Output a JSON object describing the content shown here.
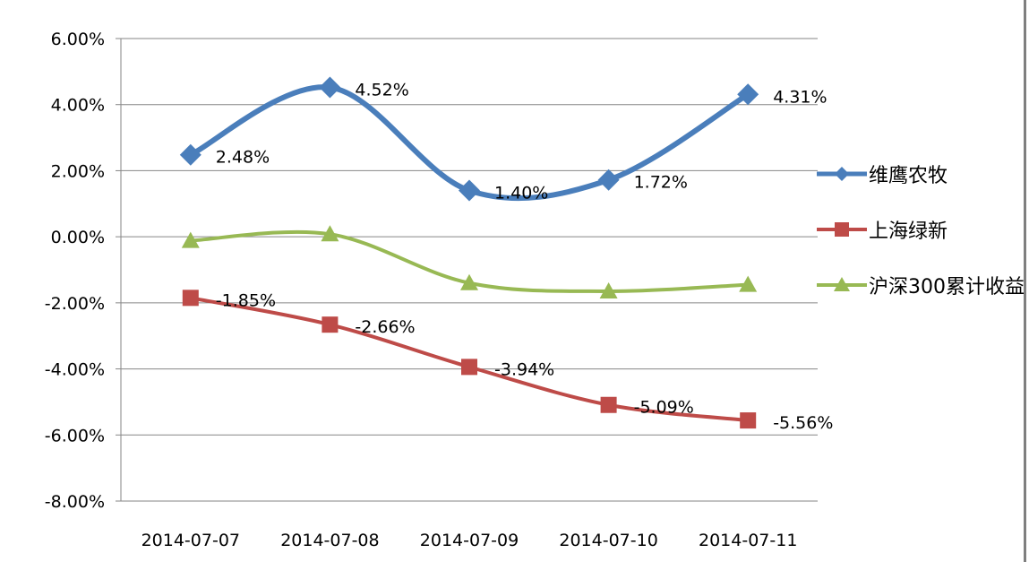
{
  "chart_data": {
    "type": "line",
    "categories": [
      "2014-07-07",
      "2014-07-08",
      "2014-07-09",
      "2014-07-10",
      "2014-07-11"
    ],
    "series": [
      {
        "name": "维鹰农牧",
        "values": [
          2.48,
          4.52,
          1.4,
          1.72,
          4.31
        ],
        "labels": [
          "2.48%",
          "4.52%",
          "1.40%",
          "1.72%",
          "4.31%"
        ],
        "color": "#4a7ebb",
        "marker": "diamond"
      },
      {
        "name": "上海绿新",
        "values": [
          -1.85,
          -2.66,
          -3.94,
          -5.09,
          -5.56
        ],
        "labels": [
          "-1.85%",
          "-2.66%",
          "-3.94%",
          "-5.09%",
          "-5.56%"
        ],
        "color": "#be4b48",
        "marker": "square"
      },
      {
        "name": "沪深300累计收益",
        "values": [
          -0.12,
          0.08,
          -1.4,
          -1.65,
          -1.45
        ],
        "color": "#98b954",
        "marker": "triangle"
      }
    ],
    "ylim": [
      -8,
      6
    ],
    "yticks": [
      "6.00%",
      "4.00%",
      "2.00%",
      "0.00%",
      "-2.00%",
      "-4.00%",
      "-6.00%",
      "-8.00%"
    ],
    "grid": true,
    "legend": "right",
    "title": "",
    "xlabel": "",
    "ylabel": ""
  },
  "legend": {
    "items": [
      "维鹰农牧",
      "上海绿新",
      "沪深300累计收益"
    ]
  }
}
